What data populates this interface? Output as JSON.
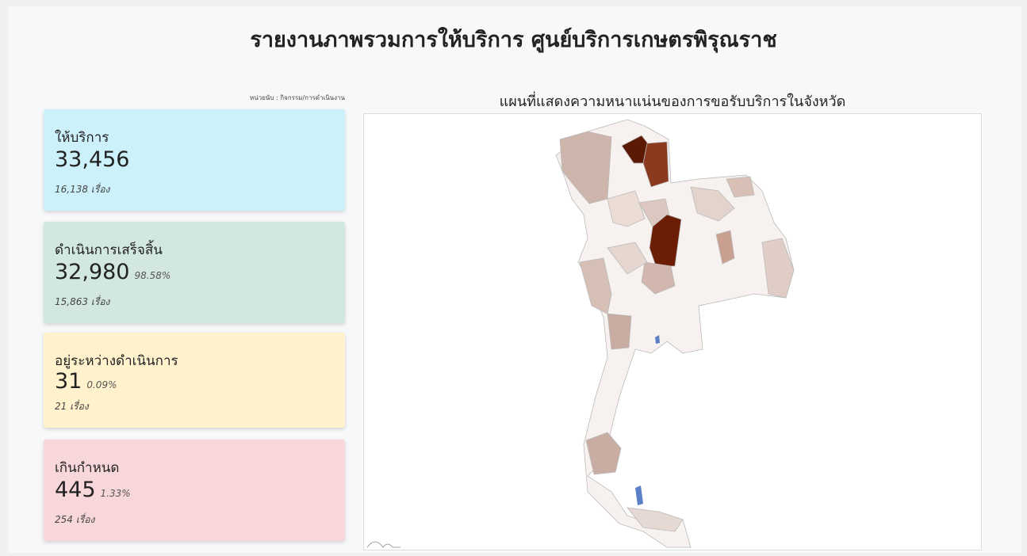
{
  "header": {
    "title": "รายงานภาพรวมการให้บริการ ศูนย์บริการเกษตรพิรุณราช",
    "unit_note": "หน่วยนับ : กิจกรรม/การดำเนินงาน"
  },
  "cards": [
    {
      "label": "ให้บริการ",
      "value": "33,456",
      "count": "16,138 เรื่อง"
    },
    {
      "label": "ดำเนินการเสร็จสิ้น",
      "value": "32,980",
      "percent": "98.58%",
      "count": "15,863 เรื่อง"
    },
    {
      "label": "อยู่ระหว่างดำเนินการ",
      "value": "31",
      "percent": "0.09%",
      "count": "21 เรื่อง"
    },
    {
      "label": "เกินกำหนด",
      "value": "445",
      "percent": "1.33%",
      "count": "254 เรื่อง"
    }
  ],
  "map": {
    "title": "แผนที่แสดงความหนาแน่นของการขอรับบริการในจังหวัด"
  }
}
